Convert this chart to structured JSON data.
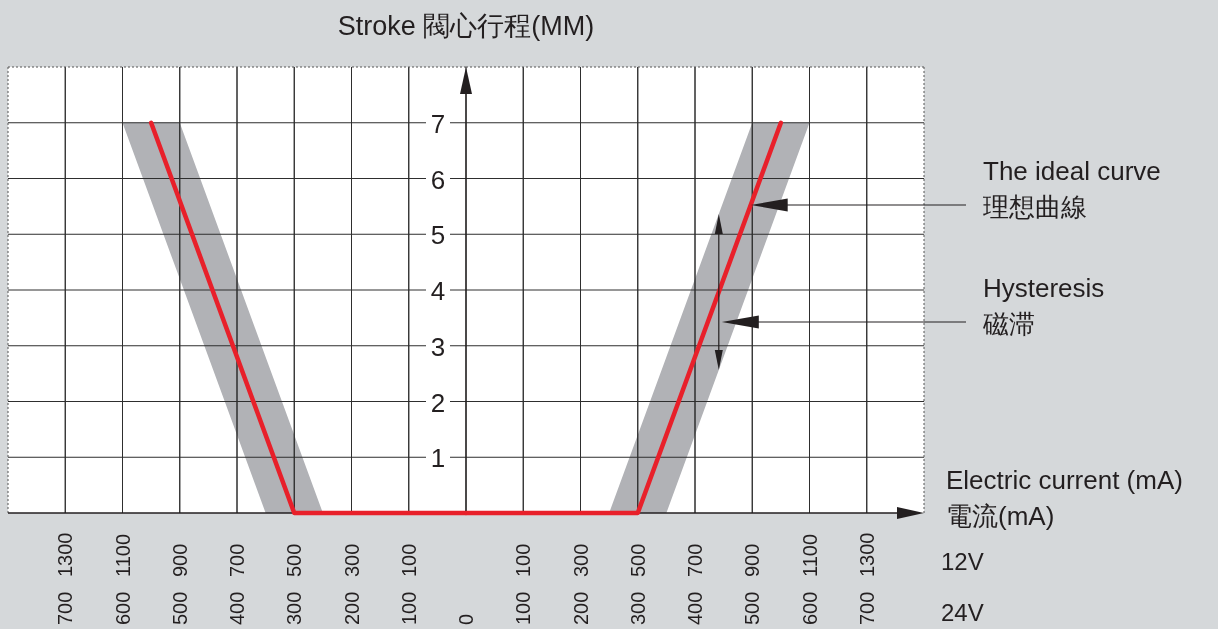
{
  "chart_data": [
    {
      "type": "line",
      "xlim": [
        800,
        0
      ],
      "xticks": [
        700,
        600,
        500,
        400,
        300,
        200,
        100
      ],
      "x2lim": [
        1500,
        -100
      ],
      "x2ticks": [
        1300,
        1100,
        900,
        700,
        500,
        300,
        100
      ],
      "ylim": [
        0,
        8
      ],
      "yticks": [
        1,
        2,
        3,
        4,
        5,
        6,
        7
      ],
      "tick_labels": "x",
      "grid": true,
      "series": [
        {
          "color": "#e8202a",
          "x": [
            0,
            250,
            300,
            350,
            500,
            550,
            600
          ],
          "values": [
            0,
            0,
            0,
            1.4,
            5.6,
            7,
            null
          ],
          "lower": [
            null,
            0,
            0,
            0,
            4.2,
            5.6,
            7
          ],
          "upper": [
            null,
            0,
            1.4,
            2.8,
            7,
            7,
            7
          ]
        }
      ]
    },
    {
      "type": "line",
      "ylabel": "Stroke 閥心行程(MM)",
      "xlabel": "Electric current (mA)\n電流(mA)",
      "annotations": [
        "The ideal curve\n理想曲線",
        "Hysteresis\n磁滞",
        "12V",
        "24V"
      ],
      "xlim": [
        0,
        800
      ],
      "xticks": [
        0,
        100,
        200,
        300,
        400,
        500,
        600,
        700
      ],
      "x2lim": [
        -100,
        1500
      ],
      "x2ticks": [
        100,
        300,
        500,
        700,
        900,
        1100,
        1300
      ],
      "ylim": [
        0,
        8
      ],
      "yticks": [
        1,
        2,
        3,
        4,
        5,
        6,
        7
      ],
      "grid": true,
      "series": [
        {
          "color": "#e8202a",
          "x": [
            0,
            250,
            300,
            350,
            500,
            550,
            600
          ],
          "values": [
            0,
            0,
            0,
            1.4,
            5.6,
            7,
            null
          ],
          "lower": [
            null,
            0,
            0,
            0,
            4.2,
            null,
            7
          ],
          "upper": [
            null,
            0,
            1.4,
            2.8,
            7,
            null,
            7
          ]
        }
      ]
    }
  ]
}
